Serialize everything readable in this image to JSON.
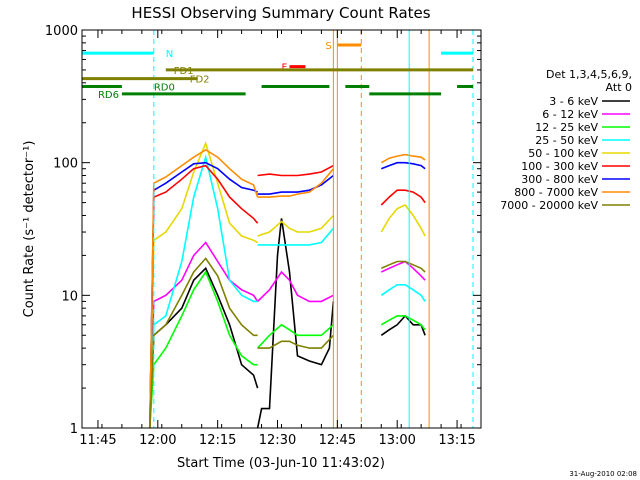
{
  "chart_data": {
    "type": "line",
    "title": "HESSI Observing Summary Count Rates",
    "xlabel": "Start Time (03-Jun-10 11:43:02)",
    "ylabel": "Count Rate (s⁻¹ detector⁻¹)",
    "y_scale": "log",
    "ylim": [
      1,
      1000
    ],
    "xlim": [
      "11:41",
      "13:21"
    ],
    "x_ticks": [
      "11:45",
      "12:00",
      "12:15",
      "12:30",
      "12:45",
      "13:00",
      "13:15"
    ],
    "y_ticks": [
      "1",
      "10",
      "100",
      "1000"
    ],
    "legend": {
      "position": "right",
      "header": [
        "Det 1,3,4,5,6,9,",
        "Att 0"
      ],
      "entries": [
        {
          "label": "3 - 6 keV",
          "color": "#000000"
        },
        {
          "label": "6 - 12 keV",
          "color": "#ff00ff"
        },
        {
          "label": "12 - 25 keV",
          "color": "#00ff00"
        },
        {
          "label": "25 - 50 keV",
          "color": "#00ffff"
        },
        {
          "label": "50 - 100 keV",
          "color": "#e6d800"
        },
        {
          "label": "100 - 300 keV",
          "color": "#ff0000"
        },
        {
          "label": "300 - 800 keV",
          "color": "#0000ff"
        },
        {
          "label": "800 - 7000 keV",
          "color": "#ff8c00"
        },
        {
          "label": "7000 - 20000 keV",
          "color": "#808000"
        }
      ]
    },
    "series": [
      {
        "name": "3 - 6 keV",
        "color": "#000000",
        "segments": [
          {
            "x": [
              "11:58",
              "11:59",
              "12:02",
              "12:06",
              "12:09",
              "12:12",
              "12:15",
              "12:18",
              "12:21",
              "12:24",
              "12:25"
            ],
            "y": [
              1,
              5,
              6,
              8,
              13,
              16,
              10,
              6,
              3,
              2.5,
              2
            ]
          },
          {
            "x": [
              "12:25",
              "12:26",
              "12:28",
              "12:30",
              "12:31",
              "12:33",
              "12:35",
              "12:38",
              "12:41",
              "12:43",
              "12:44"
            ],
            "y": [
              1,
              1.4,
              1.4,
              20,
              38,
              15,
              3.5,
              3.2,
              3,
              4,
              9
            ]
          },
          {
            "x": [
              "12:56",
              "12:58",
              "13:00",
              "13:02",
              "13:04",
              "13:06",
              "13:07"
            ],
            "y": [
              5,
              5.5,
              6,
              7,
              6,
              6,
              5
            ]
          }
        ]
      },
      {
        "name": "6 - 12 keV",
        "color": "#ff00ff",
        "segments": [
          {
            "x": [
              "11:58",
              "11:59",
              "12:02",
              "12:06",
              "12:09",
              "12:12",
              "12:15",
              "12:18",
              "12:21",
              "12:24",
              "12:25"
            ],
            "y": [
              1,
              9,
              10,
              13,
              20,
              25,
              18,
              13,
              11,
              10,
              9
            ]
          },
          {
            "x": [
              "12:25",
              "12:28",
              "12:31",
              "12:33",
              "12:35",
              "12:38",
              "12:41",
              "12:44"
            ],
            "y": [
              9,
              11,
              15,
              13,
              10,
              9,
              9,
              10
            ]
          },
          {
            "x": [
              "12:56",
              "12:58",
              "13:00",
              "13:02",
              "13:04",
              "13:06",
              "13:07"
            ],
            "y": [
              15,
              16,
              17,
              18,
              16,
              14,
              13
            ]
          }
        ]
      },
      {
        "name": "12 - 25 keV",
        "color": "#00ff00",
        "segments": [
          {
            "x": [
              "11:58",
              "11:59",
              "12:02",
              "12:06",
              "12:09",
              "12:12",
              "12:15",
              "12:18",
              "12:21",
              "12:24",
              "12:25"
            ],
            "y": [
              1,
              3,
              4,
              7,
              11,
              15,
              9,
              5,
              3.5,
              3,
              3
            ]
          },
          {
            "x": [
              "12:25",
              "12:28",
              "12:31",
              "12:33",
              "12:35",
              "12:38",
              "12:41",
              "12:44"
            ],
            "y": [
              4,
              5,
              6,
              5.5,
              5,
              5,
              5,
              6
            ]
          },
          {
            "x": [
              "12:56",
              "12:58",
              "13:00",
              "13:02",
              "13:04",
              "13:06",
              "13:07"
            ],
            "y": [
              6,
              6.5,
              7,
              7,
              6.5,
              6,
              5.5
            ]
          }
        ]
      },
      {
        "name": "25 - 50 keV",
        "color": "#00ffff",
        "segments": [
          {
            "x": [
              "11:58",
              "11:59",
              "12:02",
              "12:06",
              "12:09",
              "12:12",
              "12:15",
              "12:18",
              "12:21",
              "12:24",
              "12:25"
            ],
            "y": [
              1,
              6,
              7,
              18,
              55,
              110,
              45,
              13,
              10,
              9,
              9
            ]
          },
          {
            "x": [
              "12:25",
              "12:28",
              "12:31",
              "12:33",
              "12:35",
              "12:38",
              "12:41",
              "12:44"
            ],
            "y": [
              24,
              24,
              24,
              24,
              24,
              24,
              25,
              32
            ]
          },
          {
            "x": [
              "12:56",
              "12:58",
              "13:00",
              "13:02",
              "13:04",
              "13:06",
              "13:07"
            ],
            "y": [
              10,
              11,
              12,
              12,
              11,
              10,
              9
            ]
          }
        ]
      },
      {
        "name": "50 - 100 keV",
        "color": "#e6d800",
        "segments": [
          {
            "x": [
              "11:58",
              "11:59",
              "12:02",
              "12:06",
              "12:09",
              "12:12",
              "12:15",
              "12:18",
              "12:21",
              "12:24",
              "12:25"
            ],
            "y": [
              1,
              26,
              30,
              45,
              85,
              140,
              70,
              35,
              28,
              26,
              25
            ]
          },
          {
            "x": [
              "12:25",
              "12:28",
              "12:31",
              "12:33",
              "12:35",
              "12:38",
              "12:41",
              "12:44"
            ],
            "y": [
              28,
              30,
              36,
              32,
              30,
              30,
              32,
              40
            ]
          },
          {
            "x": [
              "12:56",
              "12:58",
              "13:00",
              "13:02",
              "13:04",
              "13:06",
              "13:07"
            ],
            "y": [
              30,
              38,
              45,
              48,
              40,
              32,
              28
            ]
          }
        ]
      },
      {
        "name": "100 - 300 keV",
        "color": "#ff0000",
        "segments": [
          {
            "x": [
              "11:58",
              "11:59",
              "12:02",
              "12:06",
              "12:09",
              "12:12",
              "12:15",
              "12:18",
              "12:21",
              "12:24",
              "12:25"
            ],
            "y": [
              1,
              55,
              60,
              75,
              90,
              95,
              75,
              55,
              45,
              38,
              35
            ]
          },
          {
            "x": [
              "12:25",
              "12:28",
              "12:31",
              "12:33",
              "12:35",
              "12:38",
              "12:41",
              "12:44"
            ],
            "y": [
              80,
              82,
              80,
              80,
              80,
              82,
              85,
              95
            ]
          },
          {
            "x": [
              "12:56",
              "12:58",
              "13:00",
              "13:02",
              "13:04",
              "13:06",
              "13:07"
            ],
            "y": [
              48,
              55,
              62,
              62,
              60,
              55,
              50
            ]
          }
        ]
      },
      {
        "name": "300 - 800 keV",
        "color": "#0000ff",
        "segments": [
          {
            "x": [
              "11:58",
              "11:59",
              "12:02",
              "12:06",
              "12:09",
              "12:12",
              "12:15",
              "12:18",
              "12:21",
              "12:24",
              "12:25"
            ],
            "y": [
              1,
              62,
              70,
              85,
              98,
              100,
              90,
              75,
              65,
              62,
              60
            ]
          },
          {
            "x": [
              "12:25",
              "12:28",
              "12:31",
              "12:33",
              "12:35",
              "12:38",
              "12:41",
              "12:44"
            ],
            "y": [
              58,
              58,
              60,
              60,
              60,
              62,
              68,
              80
            ]
          },
          {
            "x": [
              "12:56",
              "12:58",
              "13:00",
              "13:02",
              "13:04",
              "13:06",
              "13:07"
            ],
            "y": [
              90,
              95,
              100,
              100,
              98,
              95,
              90
            ]
          }
        ]
      },
      {
        "name": "800 - 7000 keV",
        "color": "#ff8c00",
        "segments": [
          {
            "x": [
              "11:58",
              "11:59",
              "12:02",
              "12:06",
              "12:09",
              "12:12",
              "12:15",
              "12:18",
              "12:21",
              "12:24",
              "12:25"
            ],
            "y": [
              1,
              70,
              78,
              95,
              110,
              125,
              110,
              90,
              75,
              68,
              55
            ]
          },
          {
            "x": [
              "12:25",
              "12:28",
              "12:31",
              "12:33",
              "12:35",
              "12:38",
              "12:41",
              "12:44"
            ],
            "y": [
              55,
              55,
              56,
              56,
              58,
              60,
              70,
              90
            ]
          },
          {
            "x": [
              "12:56",
              "12:58",
              "13:00",
              "13:02",
              "13:04",
              "13:06",
              "13:07"
            ],
            "y": [
              100,
              108,
              112,
              115,
              112,
              110,
              105
            ]
          }
        ]
      },
      {
        "name": "7000 - 20000 keV",
        "color": "#808000",
        "segments": [
          {
            "x": [
              "11:58",
              "11:59",
              "12:02",
              "12:06",
              "12:09",
              "12:12",
              "12:15",
              "12:18",
              "12:21",
              "12:24",
              "12:25"
            ],
            "y": [
              1,
              5,
              6,
              10,
              15,
              19,
              14,
              8,
              6,
              5,
              5
            ]
          },
          {
            "x": [
              "12:25",
              "12:28",
              "12:31",
              "12:33",
              "12:35",
              "12:38",
              "12:41",
              "12:44"
            ],
            "y": [
              4,
              4,
              4.5,
              4.5,
              4.2,
              4,
              4,
              5
            ]
          },
          {
            "x": [
              "12:56",
              "12:58",
              "13:00",
              "13:02",
              "13:04",
              "13:06",
              "13:07"
            ],
            "y": [
              16,
              17,
              18,
              18,
              17,
              16,
              15
            ]
          }
        ]
      }
    ],
    "flag_bars": [
      {
        "label": "N",
        "color": "#00ffff",
        "label_at": "12:02",
        "y": 670,
        "segments": [
          [
            "11:41",
            "11:59"
          ],
          [
            "13:11",
            "13:19"
          ]
        ]
      },
      {
        "label": "F",
        "color": "#ff0000",
        "label_at": "12:31",
        "y": 530,
        "segments": [
          [
            "12:33",
            "12:37"
          ]
        ]
      },
      {
        "label": "S",
        "color": "#ff8c00",
        "label_at": "12:42",
        "y": 770,
        "segments": [
          [
            "12:45",
            "12:51"
          ]
        ]
      },
      {
        "label": "FD1",
        "color": "#808000",
        "label_at": "12:04",
        "y": 500,
        "segments": [
          [
            "12:02",
            "13:19"
          ]
        ]
      },
      {
        "label": "FD2",
        "color": "#808000",
        "label_at": "12:08",
        "y": 430,
        "segments": [
          [
            "11:41",
            "12:10"
          ]
        ]
      },
      {
        "label": "RD0",
        "color": "#008000",
        "label_at": "11:59",
        "y": 375,
        "segments": [
          [
            "11:41",
            "11:51"
          ],
          [
            "12:26",
            "12:43"
          ],
          [
            "12:47",
            "12:53"
          ],
          [
            "13:15",
            "13:19"
          ]
        ]
      },
      {
        "label": "RD6",
        "color": "#008000",
        "label_at": "11:45",
        "y": 330,
        "segments": [
          [
            "11:51",
            "12:22"
          ],
          [
            "12:53",
            "13:11"
          ]
        ]
      }
    ],
    "vertical_markers": [
      {
        "x": "11:59",
        "color": "#00ffff",
        "style": "dashed"
      },
      {
        "x": "12:44",
        "color": "#ff8c00",
        "style": "solid"
      },
      {
        "x": "12:45",
        "color": "#ff8c00",
        "style": "solid"
      },
      {
        "x": "12:51",
        "color": "#ff8c00",
        "style": "dashed"
      },
      {
        "x": "13:03",
        "color": "#00ffff",
        "style": "solid"
      },
      {
        "x": "13:08",
        "color": "#ff8c00",
        "style": "solid"
      },
      {
        "x": "13:19",
        "color": "#00ffff",
        "style": "dashed"
      }
    ],
    "timestamp": "31-Aug-2010 02:08"
  }
}
